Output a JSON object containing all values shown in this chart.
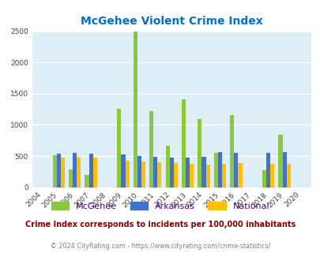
{
  "title": "McGehee Violent Crime Index",
  "years": [
    2004,
    2005,
    2006,
    2007,
    2008,
    2009,
    2010,
    2011,
    2012,
    2013,
    2014,
    2015,
    2016,
    2017,
    2018,
    2019,
    2020
  ],
  "mcgehee": [
    0,
    510,
    290,
    200,
    0,
    1260,
    2490,
    1220,
    670,
    1410,
    1090,
    550,
    1160,
    0,
    270,
    840,
    0
  ],
  "arkansas": [
    0,
    535,
    545,
    535,
    0,
    520,
    500,
    490,
    480,
    470,
    490,
    560,
    545,
    0,
    545,
    560,
    0
  ],
  "national": [
    0,
    470,
    470,
    470,
    0,
    430,
    410,
    400,
    390,
    370,
    360,
    370,
    390,
    0,
    370,
    380,
    0
  ],
  "mcgehee_color": "#8dc63f",
  "arkansas_color": "#4472c4",
  "national_color": "#ffc000",
  "bg_color": "#ddeef6",
  "title_color": "#0070c0",
  "subtitle": "Crime Index corresponds to incidents per 100,000 inhabitants",
  "subtitle_color": "#800000",
  "footer": "© 2024 CityRating.com - https://www.cityrating.com/crime-statistics/",
  "footer_color": "#7f7f7f",
  "ylim": [
    0,
    2500
  ],
  "yticks": [
    0,
    500,
    1000,
    1500,
    2000,
    2500
  ],
  "bar_width": 0.25
}
